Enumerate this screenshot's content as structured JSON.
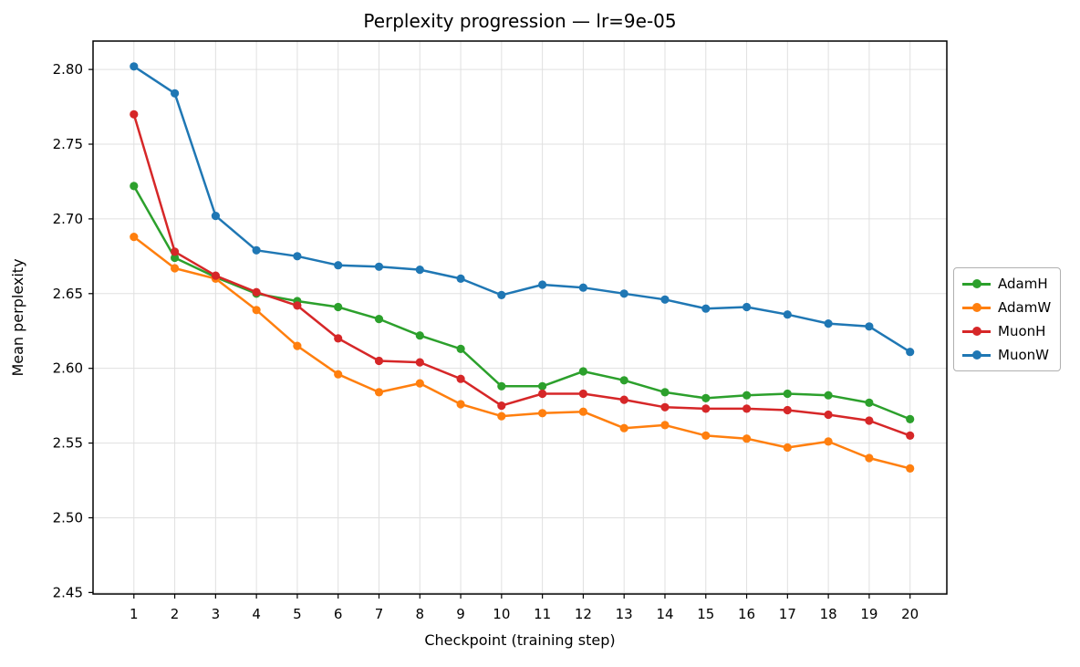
{
  "figure": {
    "title": "Perplexity progression — lr=9e-05",
    "xlabel": "Checkpoint (training step)",
    "ylabel": "Mean perplexity"
  },
  "chart_data": {
    "type": "line",
    "title": "Perplexity progression — lr=9e-05",
    "xlabel": "Checkpoint (training step)",
    "ylabel": "Mean perplexity",
    "x": [
      1,
      2,
      3,
      4,
      5,
      6,
      7,
      8,
      9,
      10,
      11,
      12,
      13,
      14,
      15,
      16,
      17,
      18,
      19,
      20
    ],
    "series": [
      {
        "name": "AdamH",
        "color": "#2ca02c",
        "values": [
          2.722,
          2.674,
          2.661,
          2.65,
          2.645,
          2.641,
          2.633,
          2.622,
          2.613,
          2.588,
          2.588,
          2.598,
          2.592,
          2.584,
          2.58,
          2.582,
          2.583,
          2.582,
          2.577,
          2.566
        ]
      },
      {
        "name": "AdamW",
        "color": "#ff7f0e",
        "values": [
          2.688,
          2.667,
          2.66,
          2.639,
          2.615,
          2.596,
          2.584,
          2.59,
          2.576,
          2.568,
          2.57,
          2.571,
          2.56,
          2.562,
          2.555,
          2.553,
          2.547,
          2.551,
          2.54,
          2.533
        ]
      },
      {
        "name": "MuonH",
        "color": "#d62728",
        "values": [
          2.77,
          2.678,
          2.662,
          2.651,
          2.642,
          2.62,
          2.605,
          2.604,
          2.593,
          2.575,
          2.583,
          2.583,
          2.579,
          2.574,
          2.573,
          2.573,
          2.572,
          2.569,
          2.565,
          2.555
        ]
      },
      {
        "name": "MuonW",
        "color": "#1f77b4",
        "values": [
          2.802,
          2.784,
          2.702,
          2.679,
          2.675,
          2.669,
          2.668,
          2.666,
          2.66,
          2.649,
          2.656,
          2.654,
          2.65,
          2.646,
          2.64,
          2.641,
          2.636,
          2.63,
          2.628,
          2.611
        ]
      }
    ],
    "xticks": [
      1,
      2,
      3,
      4,
      5,
      6,
      7,
      8,
      9,
      10,
      11,
      12,
      13,
      14,
      15,
      16,
      17,
      18,
      19,
      20
    ],
    "yticks": [
      2.45,
      2.5,
      2.55,
      2.6,
      2.65,
      2.7,
      2.75,
      2.8
    ],
    "xlim": [
      0,
      20.9
    ],
    "ylim": [
      2.449,
      2.819
    ],
    "grid": true,
    "legend_position": "center right outside",
    "marker": "circle",
    "colors": {
      "grid": "#e0e0e0",
      "spine": "#000000",
      "text": "#000000"
    }
  }
}
